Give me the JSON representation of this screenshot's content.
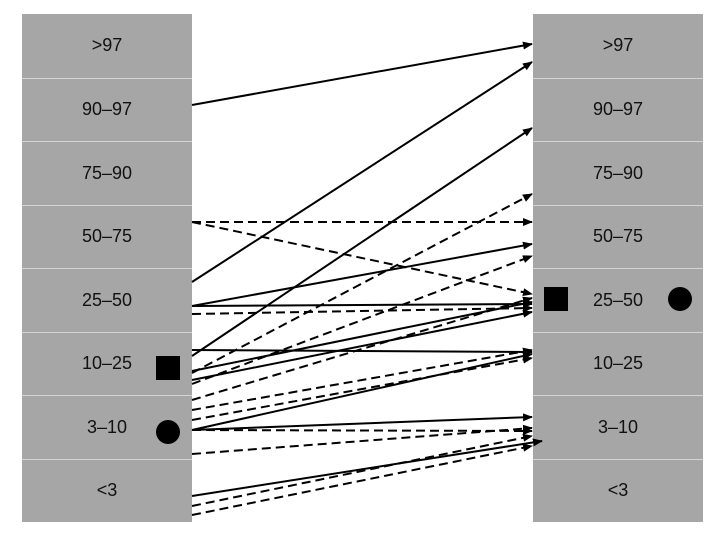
{
  "left_column": {
    "labels": [
      ">97",
      "90–97",
      "75–90",
      "50–75",
      "25–50",
      "10–25",
      "3–10",
      "<3"
    ]
  },
  "right_column": {
    "labels": [
      ">97",
      "90–97",
      "75–90",
      "50–75",
      "25–50",
      "10–25",
      "3–10",
      "<3"
    ]
  },
  "markers": {
    "square": {
      "shape": "square",
      "color": "#000000",
      "left_band": "10–25",
      "right_band": "25–50"
    },
    "circle": {
      "shape": "circle",
      "color": "#000000",
      "left_band": "3–10",
      "right_band": "25–50"
    }
  },
  "arrow_style": {
    "color": "#000000"
  }
}
